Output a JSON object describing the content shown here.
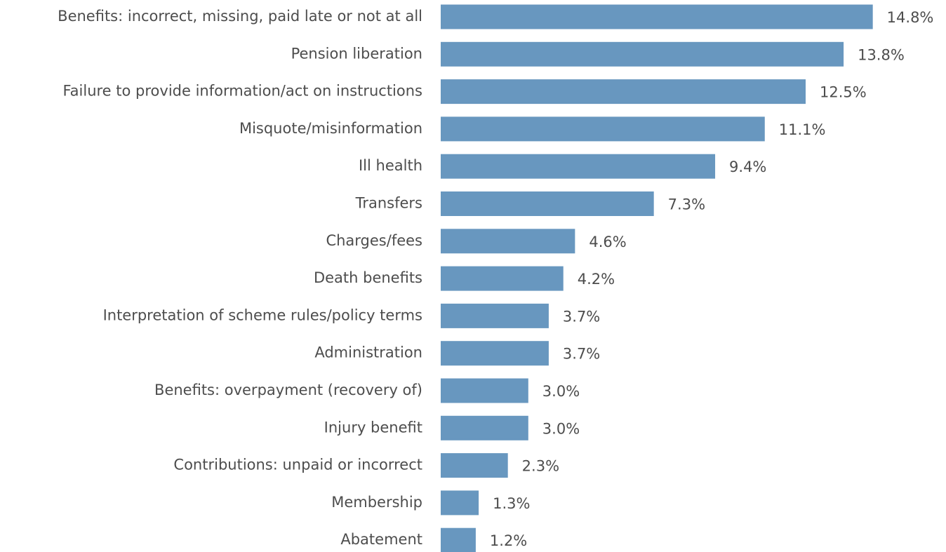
{
  "chart_data": {
    "type": "barh",
    "categories": [
      "Benefits: incorrect, missing, paid late or not at all",
      "Pension liberation",
      "Failure to provide information/act on instructions",
      "Misquote/misinformation",
      "Ill health",
      "Transfers",
      "Charges/fees",
      "Death benefits",
      "Interpretation of scheme rules/policy terms",
      "Administration",
      "Benefits: overpayment (recovery of)",
      "Injury benefit",
      "Contributions: unpaid or incorrect",
      "Membership",
      "Abatement"
    ],
    "values": [
      14.8,
      13.8,
      12.5,
      11.1,
      9.4,
      7.3,
      4.6,
      4.2,
      3.7,
      3.7,
      3.0,
      3.0,
      2.3,
      1.3,
      1.2
    ],
    "value_labels": [
      "14.8%",
      "13.8%",
      "12.5%",
      "11.1%",
      "9.4%",
      "7.3%",
      "4.6%",
      "4.2%",
      "3.7%",
      "3.7%",
      "3.0%",
      "3.0%",
      "2.3%",
      "1.3%",
      "1.2%"
    ],
    "color": "#6897bf",
    "xlim": [
      0,
      15
    ]
  }
}
